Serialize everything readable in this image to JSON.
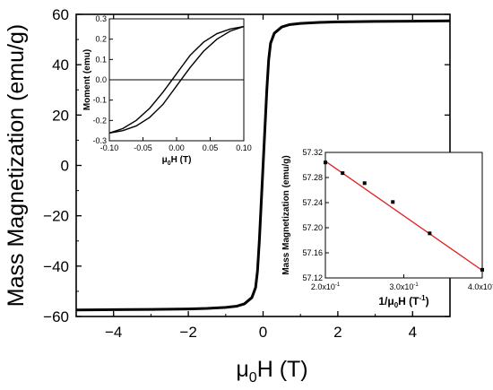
{
  "colors": {
    "curve": "#000000",
    "fit_line": "#e02020",
    "points": "#000000",
    "axes": "#000000",
    "background": "#ffffff"
  },
  "chart_data": [
    {
      "id": "main",
      "type": "line",
      "xlabel_prefix": "μ",
      "xlabel_sub": "0",
      "xlabel_suffix": "H (T)",
      "ylabel": "Mass Magnetization (emu/g)",
      "xlim": [
        -5,
        5
      ],
      "ylim": [
        -60,
        60
      ],
      "xticks": [
        -4,
        -2,
        0,
        2,
        4
      ],
      "xtick_labels": [
        "−4",
        "−2",
        "0",
        "2",
        "4"
      ],
      "yticks": [
        -60,
        -40,
        -20,
        0,
        20,
        40,
        60
      ],
      "ytick_labels": [
        "−60",
        "−40",
        "−20",
        "0",
        "20",
        "40",
        "60"
      ],
      "grid": false,
      "series": [
        {
          "x": [
            -5,
            -4,
            -3,
            -2,
            -1.5,
            -1,
            -0.7,
            -0.5,
            -0.3,
            -0.2,
            -0.15,
            -0.1,
            -0.05,
            0,
            0.05,
            0.1,
            0.15,
            0.2,
            0.3,
            0.5,
            0.7,
            1,
            1.5,
            2,
            3,
            4,
            5
          ],
          "y": [
            -57.4,
            -57.3,
            -57.2,
            -57.0,
            -56.8,
            -56.4,
            -55.9,
            -55.0,
            -52.5,
            -48.5,
            -42,
            -30,
            -15,
            0,
            15,
            30,
            42,
            48.5,
            52.5,
            55.0,
            55.9,
            56.4,
            56.8,
            57.0,
            57.2,
            57.3,
            57.4
          ]
        }
      ]
    },
    {
      "id": "inset-hysteresis",
      "type": "line",
      "xlabel_prefix": "μ",
      "xlabel_sub": "0",
      "xlabel_suffix": "H (T)",
      "ylabel": "Moment (emu)",
      "xlim": [
        -0.1,
        0.1
      ],
      "ylim": [
        -0.3,
        0.3
      ],
      "xticks": [
        -0.1,
        -0.05,
        0,
        0.05,
        0.1
      ],
      "xtick_labels": [
        "-0.10",
        "-0.05",
        "0.00",
        "0.05",
        "0.10"
      ],
      "yticks": [
        -0.3,
        -0.2,
        -0.1,
        0,
        0.1,
        0.2,
        0.3
      ],
      "ytick_labels": [
        "-0.3",
        "-0.2",
        "-0.1",
        "0.0",
        "0.1",
        "0.2",
        "0.3"
      ],
      "zero_line": true,
      "grid": false,
      "series": [
        {
          "x": [
            -0.1,
            -0.08,
            -0.06,
            -0.04,
            -0.02,
            -0.01,
            0,
            0.01,
            0.02,
            0.04,
            0.06,
            0.08,
            0.1
          ],
          "y": [
            -0.262,
            -0.25,
            -0.227,
            -0.185,
            -0.12,
            -0.075,
            -0.03,
            0.015,
            0.06,
            0.14,
            0.2,
            0.24,
            0.262
          ]
        },
        {
          "x": [
            0.1,
            0.08,
            0.06,
            0.04,
            0.02,
            0.01,
            0,
            -0.01,
            -0.02,
            -0.04,
            -0.06,
            -0.08,
            -0.1
          ],
          "y": [
            0.262,
            0.25,
            0.227,
            0.185,
            0.12,
            0.075,
            0.03,
            -0.015,
            -0.06,
            -0.14,
            -0.2,
            -0.24,
            -0.262
          ]
        }
      ]
    },
    {
      "id": "inset-fit",
      "type": "scatter",
      "xlabel_main": "1/μ",
      "xlabel_sub": "0",
      "xlabel_mid": "H (T",
      "xlabel_sup": "-1",
      "xlabel_end": ")",
      "ylabel": "Mass Magnetization (emu/g)",
      "xlim": [
        0.2,
        0.4
      ],
      "ylim": [
        57.12,
        57.32
      ],
      "xticks": [
        0.2,
        0.3,
        0.4
      ],
      "xtick_labels": [
        {
          "mant": "2.0x10",
          "exp": "-1"
        },
        {
          "mant": "3.0x10",
          "exp": "-1"
        },
        {
          "mant": "4.0x10",
          "exp": "-1"
        }
      ],
      "yticks": [
        57.12,
        57.16,
        57.2,
        57.24,
        57.28,
        57.32
      ],
      "ytick_labels": [
        "57.12",
        "57.16",
        "57.20",
        "57.24",
        "57.28",
        "57.32"
      ],
      "grid": false,
      "series": [
        {
          "x": [
            0.2,
            0.222,
            0.25,
            0.286,
            0.333,
            0.4
          ],
          "y": [
            57.304,
            57.287,
            57.271,
            57.241,
            57.191,
            57.133
          ]
        }
      ],
      "fit": {
        "x": [
          0.2,
          0.4
        ],
        "y": [
          57.306,
          57.132
        ]
      }
    }
  ]
}
